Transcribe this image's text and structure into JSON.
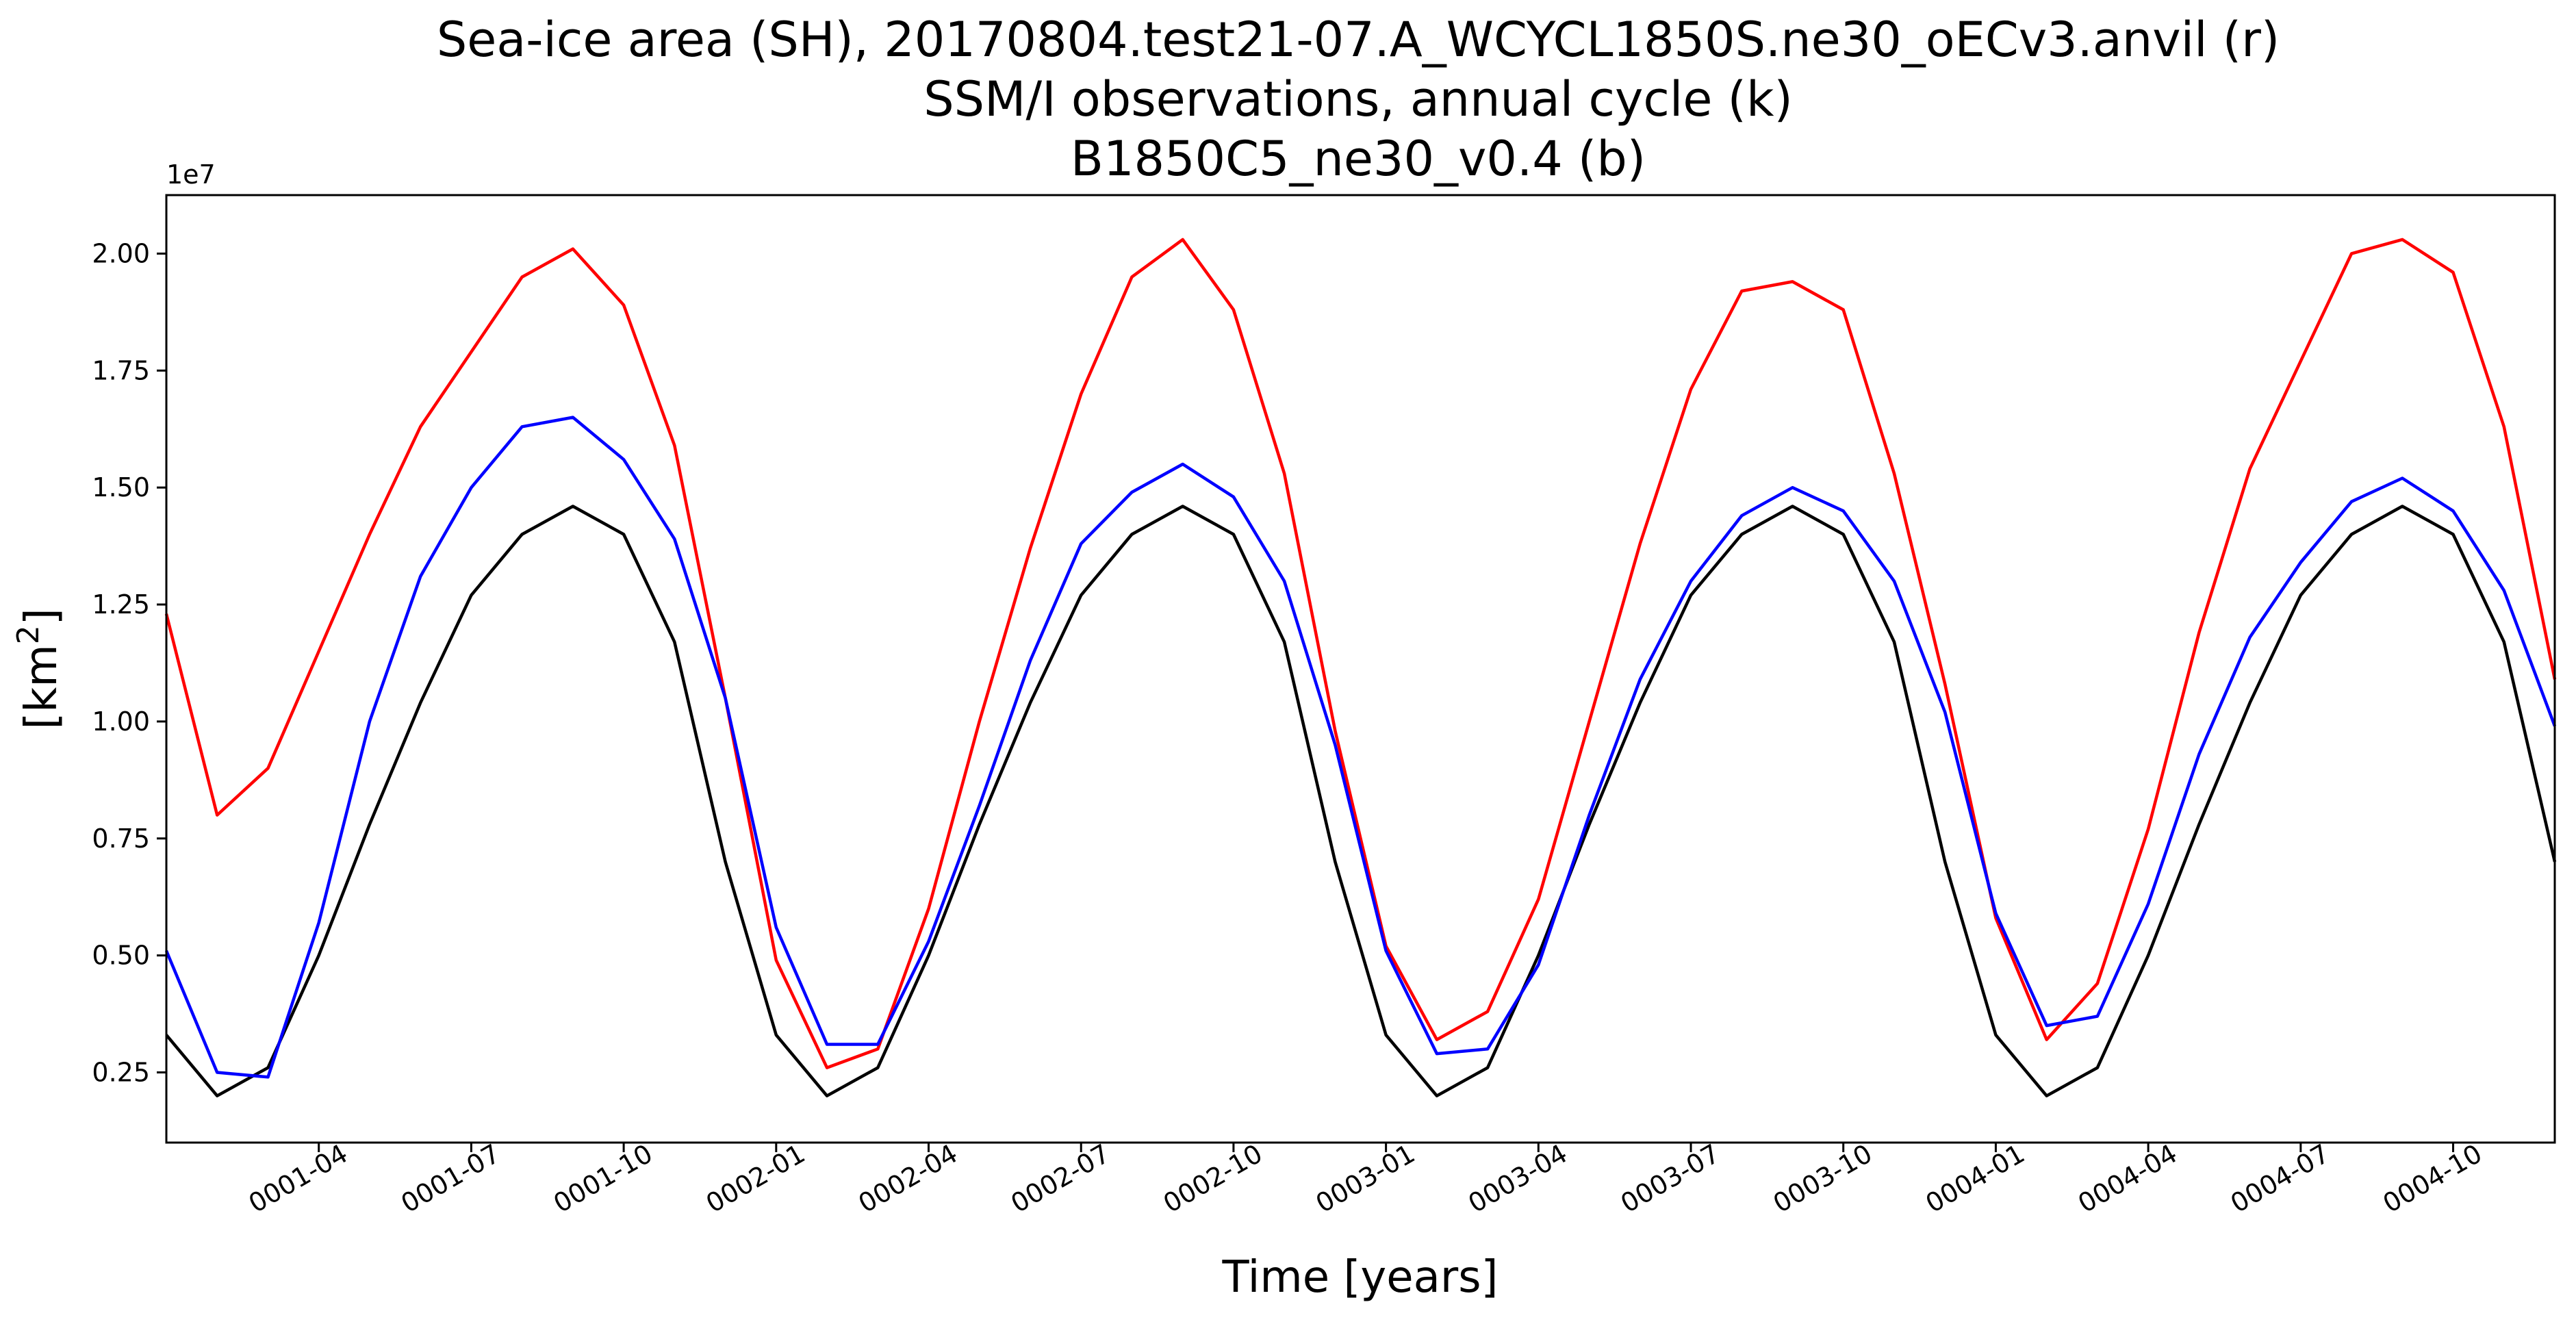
{
  "chart_data": {
    "type": "line",
    "title_lines": [
      "Sea-ice area (SH), 20170804.test21-07.A_WCYCL1850S.ne30_oECv3.anvil (r)",
      "SSM/I observations, annual cycle (k)",
      "B1850C5_ne30_v0.4 (b)"
    ],
    "xlabel": "Time [years]",
    "ylabel_base": "[km",
    "ylabel_sup": "2",
    "ylabel_end": "]",
    "y_offset_label": "1e7",
    "y_scale": 10000000,
    "ylim": [
      0.1,
      2.125
    ],
    "xlim": [
      "0001-01",
      "0004-12"
    ],
    "x_ticks": [
      "0001-04",
      "0001-07",
      "0001-10",
      "0002-01",
      "0002-04",
      "0002-07",
      "0002-10",
      "0003-01",
      "0003-04",
      "0003-07",
      "0003-10",
      "0004-01",
      "0004-04",
      "0004-07",
      "0004-10"
    ],
    "y_ticks": [
      "0.25",
      "0.50",
      "0.75",
      "1.00",
      "1.25",
      "1.50",
      "1.75",
      "2.00"
    ],
    "x": [
      "0001-01",
      "0001-02",
      "0001-03",
      "0001-04",
      "0001-05",
      "0001-06",
      "0001-07",
      "0001-08",
      "0001-09",
      "0001-10",
      "0001-11",
      "0001-12",
      "0002-01",
      "0002-02",
      "0002-03",
      "0002-04",
      "0002-05",
      "0002-06",
      "0002-07",
      "0002-08",
      "0002-09",
      "0002-10",
      "0002-11",
      "0002-12",
      "0003-01",
      "0003-02",
      "0003-03",
      "0003-04",
      "0003-05",
      "0003-06",
      "0003-07",
      "0003-08",
      "0003-09",
      "0003-10",
      "0003-11",
      "0003-12",
      "0004-01",
      "0004-02",
      "0004-03",
      "0004-04",
      "0004-05",
      "0004-06",
      "0004-07",
      "0004-08",
      "0004-09",
      "0004-10",
      "0004-11",
      "0004-12"
    ],
    "series": [
      {
        "color": "#ff0000",
        "values": [
          1.23,
          0.8,
          0.9,
          1.15,
          1.4,
          1.63,
          1.79,
          1.95,
          2.01,
          1.89,
          1.59,
          1.05,
          0.49,
          0.26,
          0.3,
          0.6,
          1.0,
          1.37,
          1.7,
          1.95,
          2.03,
          1.88,
          1.53,
          0.98,
          0.52,
          0.32,
          0.38,
          0.62,
          1.0,
          1.38,
          1.71,
          1.92,
          1.94,
          1.88,
          1.53,
          1.08,
          0.58,
          0.32,
          0.44,
          0.77,
          1.19,
          1.54,
          1.77,
          2.0,
          2.03,
          1.96,
          1.63,
          1.09
        ]
      },
      {
        "color": "#000000",
        "values": [
          0.33,
          0.2,
          0.26,
          0.5,
          0.78,
          1.04,
          1.27,
          1.4,
          1.46,
          1.4,
          1.17,
          0.7,
          0.33,
          0.2,
          0.26,
          0.5,
          0.78,
          1.04,
          1.27,
          1.4,
          1.46,
          1.4,
          1.17,
          0.7,
          0.33,
          0.2,
          0.26,
          0.5,
          0.78,
          1.04,
          1.27,
          1.4,
          1.46,
          1.4,
          1.17,
          0.7,
          0.33,
          0.2,
          0.26,
          0.5,
          0.78,
          1.04,
          1.27,
          1.4,
          1.46,
          1.4,
          1.17,
          0.7
        ]
      },
      {
        "color": "#0000ff",
        "values": [
          0.51,
          0.25,
          0.24,
          0.57,
          1.0,
          1.31,
          1.5,
          1.63,
          1.65,
          1.56,
          1.39,
          1.05,
          0.56,
          0.31,
          0.31,
          0.53,
          0.82,
          1.13,
          1.38,
          1.49,
          1.55,
          1.48,
          1.3,
          0.95,
          0.51,
          0.29,
          0.3,
          0.48,
          0.8,
          1.09,
          1.3,
          1.44,
          1.5,
          1.45,
          1.3,
          1.02,
          0.59,
          0.35,
          0.37,
          0.61,
          0.93,
          1.18,
          1.34,
          1.47,
          1.52,
          1.45,
          1.28,
          0.99
        ]
      }
    ]
  }
}
